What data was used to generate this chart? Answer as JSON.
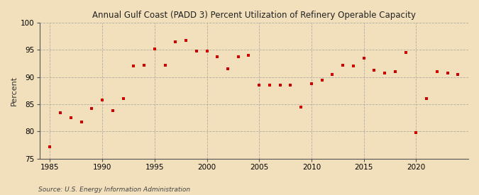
{
  "title": "Annual Gulf Coast (PADD 3) Percent Utilization of Refinery Operable Capacity",
  "ylabel": "Percent",
  "source": "Source: U.S. Energy Information Administration",
  "background_color": "#f2e0bc",
  "plot_background": "#f2e0bc",
  "marker_color": "#cc0000",
  "marker_size": 3.5,
  "xlim": [
    1984,
    2025
  ],
  "ylim": [
    75,
    100
  ],
  "yticks": [
    75,
    80,
    85,
    90,
    95,
    100
  ],
  "xticks": [
    1985,
    1990,
    1995,
    2000,
    2005,
    2010,
    2015,
    2020
  ],
  "years": [
    1985,
    1986,
    1987,
    1988,
    1989,
    1990,
    1991,
    1992,
    1993,
    1994,
    1995,
    1996,
    1997,
    1998,
    1999,
    2000,
    2001,
    2002,
    2003,
    2004,
    2005,
    2006,
    2007,
    2008,
    2009,
    2010,
    2011,
    2012,
    2013,
    2014,
    2015,
    2016,
    2017,
    2018,
    2019,
    2020,
    2021,
    2022,
    2023,
    2024
  ],
  "values": [
    77.2,
    83.5,
    82.5,
    81.8,
    84.2,
    85.8,
    83.8,
    86.0,
    92.0,
    92.2,
    95.2,
    92.2,
    96.5,
    96.8,
    94.8,
    94.8,
    93.8,
    91.5,
    93.8,
    94.0,
    88.5,
    88.5,
    88.5,
    88.5,
    84.5,
    88.8,
    89.5,
    90.5,
    92.2,
    92.0,
    93.5,
    91.2,
    90.8,
    91.0,
    94.5,
    79.8,
    86.0,
    91.0,
    90.8,
    90.5
  ]
}
